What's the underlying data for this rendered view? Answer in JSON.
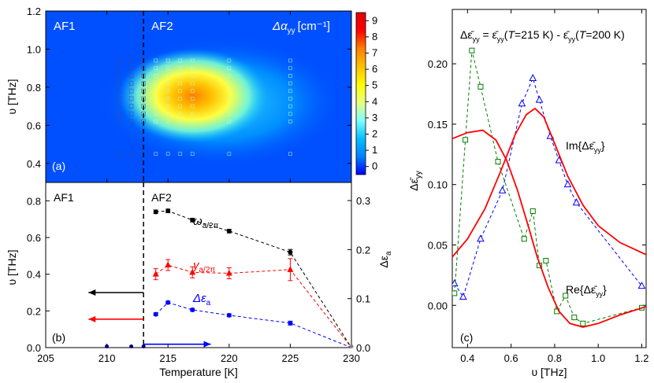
{
  "chart_data": [
    {
      "id": "a",
      "type": "heatmap",
      "panel_label": "(a)",
      "ylabel": "υ [THz]",
      "xlim": [
        205,
        230
      ],
      "ylim": [
        0.3,
        1.2
      ],
      "y_ticks": [
        0.4,
        0.6,
        0.8,
        1.0,
        1.2
      ],
      "region_labels": [
        "AF1",
        "AF2"
      ],
      "phase_boundary_temperature": 213,
      "colorbar": {
        "title": "Δα",
        "title_sub": "yy",
        "title_unit": "[cm⁻¹]",
        "min": -0.5,
        "max": 9.5,
        "ticks": [
          0,
          1,
          2,
          3,
          4,
          5,
          6,
          7,
          8,
          9
        ],
        "colors": [
          "#0000ff",
          "#0080ff",
          "#00c0ff",
          "#80ffff",
          "#e6ff80",
          "#ffff00",
          "#ffc000",
          "#ff8000",
          "#ff0000",
          "#e00000"
        ]
      },
      "peak": {
        "temperature": 216,
        "frequency": 0.72,
        "value": 8
      }
    },
    {
      "id": "b",
      "type": "line",
      "panel_label": "(b)",
      "xlabel": "Temperature [K]",
      "ylabel": "υ [THz]",
      "y2label": "Δε",
      "y2label_sub": "a",
      "xlim": [
        205,
        230
      ],
      "ylim": [
        0,
        0.9
      ],
      "y2lim": [
        0,
        0.337
      ],
      "x_ticks": [
        205,
        210,
        215,
        220,
        225,
        230
      ],
      "y_ticks": [
        0.0,
        0.2,
        0.4,
        0.6,
        0.8
      ],
      "y2_ticks": [
        0.0,
        0.1,
        0.2,
        0.3
      ],
      "region_labels": [
        "AF1",
        "AF2"
      ],
      "phase_boundary_temperature": 213,
      "zero_points_x": [
        210,
        212,
        213
      ],
      "series": [
        {
          "name": "ω",
          "name_sub": "a/2π",
          "color": "#000000",
          "marker": "circle",
          "x": [
            214,
            215,
            217,
            220,
            225,
            230
          ],
          "y": [
            0.74,
            0.745,
            0.695,
            0.635,
            0.52,
            0.0
          ],
          "err": [
            0.01,
            0.01,
            0.01,
            0.01,
            0.015,
            0
          ]
        },
        {
          "name": "γ",
          "name_sub": "a/2π",
          "color": "#ff0000",
          "marker": "triangle",
          "x": [
            214,
            215,
            217,
            220,
            225,
            230
          ],
          "y": [
            0.4,
            0.45,
            0.41,
            0.405,
            0.425,
            0.0
          ],
          "err": [
            0.03,
            0.03,
            0.03,
            0.03,
            0.06,
            0
          ]
        },
        {
          "name": "Δε",
          "name_sub": "a",
          "color": "#0000ff",
          "marker": "circle",
          "axis": "right",
          "x": [
            214,
            215,
            217,
            220,
            225,
            230
          ],
          "y": [
            0.068,
            0.092,
            0.077,
            0.066,
            0.05,
            0.0
          ],
          "err": [
            0.003,
            0.003,
            0.003,
            0.003,
            0.004,
            0
          ]
        }
      ],
      "arrows": [
        {
          "color": "#000000",
          "direction": "left",
          "from_x": 213,
          "to_x": 208.5,
          "y": 0.3
        },
        {
          "color": "#ff0000",
          "direction": "left",
          "from_x": 213,
          "to_x": 208.5,
          "y": 0.155
        },
        {
          "color": "#0000ff",
          "direction": "right",
          "from_x": 213,
          "to_x": 218.5,
          "y": 0.007,
          "axis": "right"
        }
      ]
    },
    {
      "id": "c",
      "type": "line",
      "panel_label": "(c)",
      "title": "Δε̄yy = ε̄yy(T=215 K) - ε̄yy(T=200 K)",
      "title_parts": [
        "Δε̄",
        "yy",
        " = ε̄",
        "yy",
        "(",
        "T",
        "=215 K) - ε̄",
        "yy",
        "(",
        "T",
        "=200 K)"
      ],
      "xlabel": "υ [THz]",
      "ylabel": "Δε̄",
      "ylabel_sub": "yy",
      "xlim": [
        0.33,
        1.22
      ],
      "ylim": [
        -0.035,
        0.245
      ],
      "x_ticks": [
        0.4,
        0.6,
        0.8,
        1.0,
        1.2
      ],
      "x_tick_labels": [
        "0.4",
        "0.6",
        "0.8",
        "1.0",
        "1.2"
      ],
      "y_ticks": [
        0.0,
        0.05,
        0.1,
        0.15,
        0.2
      ],
      "y_tick_labels": [
        "0.00",
        "0.05",
        "0.10",
        "0.15",
        "0.20"
      ],
      "series": [
        {
          "name": "Im{Δε̄",
          "name_sub": "yy",
          "name_end": "}",
          "color": "#0000ff",
          "marker": "triangle-open",
          "style": "dashed",
          "x": [
            0.34,
            0.38,
            0.46,
            0.56,
            0.65,
            0.7,
            0.73,
            0.78,
            0.82,
            0.86,
            0.9,
            1.2
          ],
          "y": [
            0.018,
            0.007,
            0.055,
            0.095,
            0.167,
            0.188,
            0.17,
            0.14,
            0.12,
            0.1,
            0.085,
            0.016
          ]
        },
        {
          "name": "Re{Δε̄",
          "name_sub": "yy",
          "name_end": "}",
          "color": "#008000",
          "marker": "square-open",
          "style": "dashed",
          "x": [
            0.34,
            0.39,
            0.42,
            0.46,
            0.54,
            0.66,
            0.7,
            0.73,
            0.76,
            0.81,
            0.85,
            0.89,
            0.93,
            1.2
          ],
          "y": [
            0.01,
            0.137,
            0.211,
            0.181,
            0.119,
            0.055,
            0.078,
            0.033,
            0.037,
            -0.005,
            0.008,
            -0.01,
            -0.015,
            -0.002
          ]
        },
        {
          "name": "Im fit",
          "color": "#ff0000",
          "style": "solid",
          "x": [
            0.33,
            0.4,
            0.48,
            0.55,
            0.62,
            0.67,
            0.71,
            0.75,
            0.8,
            0.86,
            0.93,
            1.0,
            1.1,
            1.22
          ],
          "y": [
            0.04,
            0.055,
            0.08,
            0.11,
            0.142,
            0.158,
            0.163,
            0.156,
            0.134,
            0.107,
            0.083,
            0.066,
            0.052,
            0.042
          ]
        },
        {
          "name": "Re fit",
          "color": "#ff0000",
          "style": "solid",
          "x": [
            0.33,
            0.4,
            0.47,
            0.53,
            0.58,
            0.63,
            0.68,
            0.72,
            0.77,
            0.82,
            0.87,
            0.93,
            1.0,
            1.1,
            1.22
          ],
          "y": [
            0.138,
            0.143,
            0.145,
            0.137,
            0.12,
            0.095,
            0.065,
            0.04,
            0.015,
            -0.005,
            -0.015,
            -0.018,
            -0.015,
            -0.008,
            -0.001
          ]
        }
      ]
    }
  ]
}
